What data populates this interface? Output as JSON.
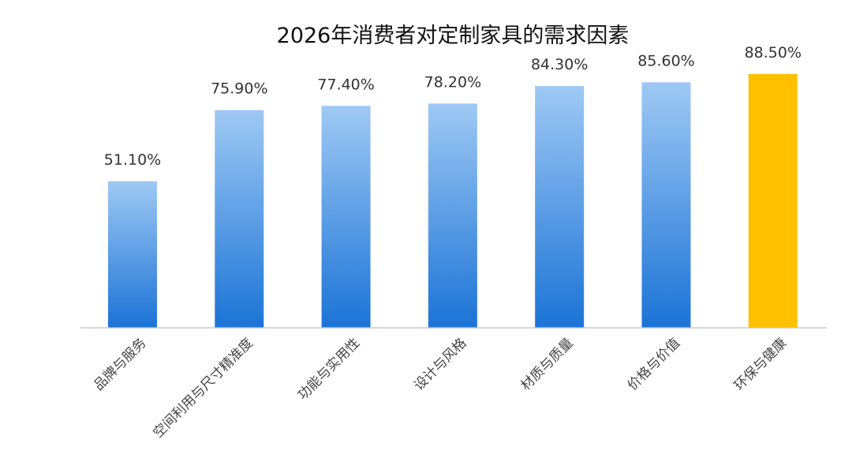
{
  "chart_data": {
    "type": "bar",
    "title": "2026年消费者对定制家具的需求因素",
    "categories": [
      "品牌与服务",
      "空间利用与尺寸精准度",
      "功能与实用性",
      "设计与风格",
      "材质与质量",
      "价格与价值",
      "环保与健康"
    ],
    "values": [
      51.1,
      75.9,
      77.4,
      78.2,
      84.3,
      85.6,
      88.5
    ],
    "value_labels": [
      "51.10%",
      "75.90%",
      "77.40%",
      "78.20%",
      "84.30%",
      "85.60%",
      "88.50%"
    ],
    "unit": "%",
    "ylim": [
      0,
      100
    ],
    "grid": false,
    "legend": "none",
    "highlight_index": 6,
    "colors": {
      "bar_gradient_top": "#9fc9f4",
      "bar_gradient_bottom": "#1b73d6",
      "highlight": "#ffc000",
      "axis": "#c8c8c8"
    }
  }
}
